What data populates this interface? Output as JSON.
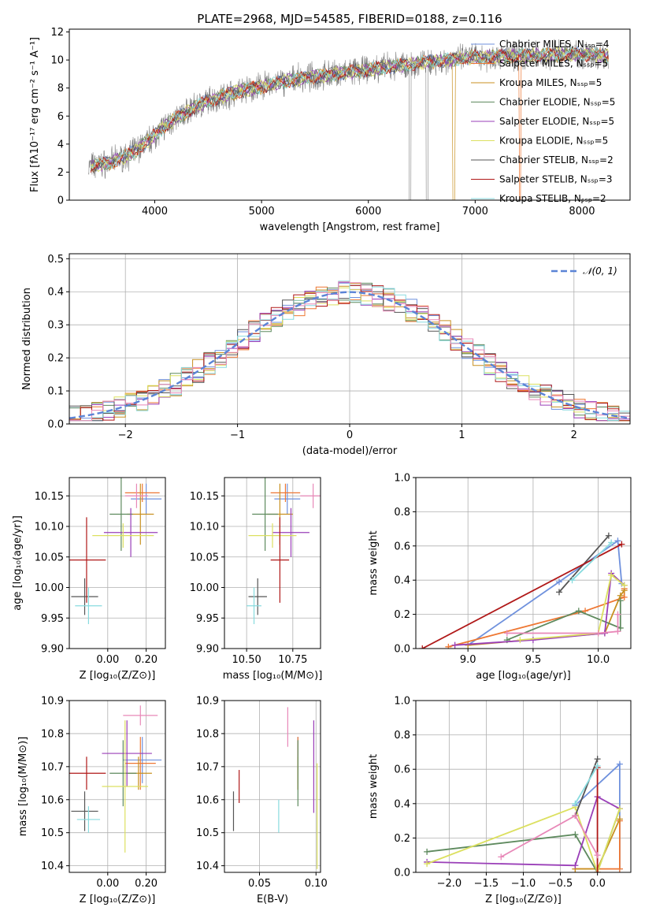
{
  "colors": {
    "series": [
      "#6f91dd",
      "#ee7733",
      "#c89020",
      "#5e8a5e",
      "#9a3fb8",
      "#dce060",
      "#555555",
      "#b01818",
      "#88dbdf"
    ],
    "hist": [
      "#6f91dd",
      "#ee7733",
      "#c89020",
      "#5e8a5e",
      "#9a3fb8",
      "#dce060",
      "#555555",
      "#b01818",
      "#88dbdf",
      "#e888b8"
    ],
    "spectrum": "#808080",
    "grid": "#b0b0b0",
    "gauss": "#5b84d6"
  },
  "chart_data": [
    {
      "id": "spectrum",
      "type": "line",
      "title": "PLATE=2968, MJD=54585, FIBERID=0188, z=0.116",
      "xlabel": "wavelength [Angstrom, rest frame]",
      "ylabel": "Flux [fλ10⁻¹⁷ erg cm⁻² s⁻¹ A⁻¹]",
      "xlim": [
        3200,
        8450
      ],
      "ylim": [
        0,
        12.2
      ],
      "xticks": [
        4000,
        5000,
        6000,
        7000,
        8000
      ],
      "yticks": [
        0,
        2,
        4,
        6,
        8,
        10,
        12
      ],
      "grid": false,
      "legend_position": "top-right",
      "legend": [
        "Chabrier MILES, Nₛₛₚ=4",
        "Salpeter MILES, Nₛₛₚ=5",
        "Kroupa MILES, Nₛₛₚ=5",
        "Chabrier ELODIE, Nₛₛₚ=5",
        "Salpeter ELODIE, Nₛₛₚ=5",
        "Kroupa ELODIE, Nₛₛₚ=5",
        "Chabrier STELIB, Nₛₛₚ=2",
        "Salpeter STELIB, Nₛₛₚ=3",
        "Kroupa STELIB, Nₛₛₚ=2"
      ],
      "continuum": [
        [
          3400,
          2.4
        ],
        [
          3600,
          2.7
        ],
        [
          3800,
          3.4
        ],
        [
          3950,
          4.3
        ],
        [
          4100,
          5.3
        ],
        [
          4300,
          6.3
        ],
        [
          4500,
          7.1
        ],
        [
          4800,
          7.8
        ],
        [
          5000,
          8.1
        ],
        [
          5300,
          8.6
        ],
        [
          5600,
          8.9
        ],
        [
          6000,
          9.3
        ],
        [
          6300,
          9.6
        ],
        [
          6600,
          9.9
        ],
        [
          7000,
          10.2
        ],
        [
          7400,
          10.3
        ],
        [
          7800,
          10.4
        ],
        [
          8000,
          10.4
        ],
        [
          8250,
          10.3
        ]
      ]
    },
    {
      "id": "residuals",
      "type": "line",
      "xlabel": "(data-model)/error",
      "ylabel": "Normed distribution",
      "xlim": [
        -2.5,
        2.5
      ],
      "ylim": [
        0,
        0.515
      ],
      "xticks": [
        -2,
        -1,
        0,
        1,
        2
      ],
      "yticks": [
        0.0,
        0.1,
        0.2,
        0.3,
        0.4,
        0.5
      ],
      "grid": true,
      "legend_position": "top-right",
      "legend": [
        "𝒩(0, 1)"
      ],
      "bin_width": 0.1
    },
    {
      "id": "age-vs-Z",
      "type": "scatter",
      "xlabel": "Z [log₁₀(Z/Z⊙)]",
      "ylabel": "age  [log₁₀(age/yr)]",
      "xlim": [
        -0.2,
        0.3
      ],
      "ylim": [
        9.9,
        10.18
      ],
      "xticks": [
        0.0,
        0.2
      ],
      "yticks": [
        9.9,
        9.95,
        10.0,
        10.05,
        10.1,
        10.15
      ],
      "grid": true,
      "points": [
        {
          "x": 0.2,
          "y": 10.145,
          "xerr": 0.08,
          "yerr": 0.025
        },
        {
          "x": 0.18,
          "y": 10.155,
          "xerr": 0.09,
          "yerr": 0.015
        },
        {
          "x": 0.17,
          "y": 10.12,
          "xerr": 0.07,
          "yerr": 0.05
        },
        {
          "x": 0.07,
          "y": 10.12,
          "xerr": 0.06,
          "yerr": 0.06
        },
        {
          "x": 0.12,
          "y": 10.09,
          "xerr": 0.14,
          "yerr": 0.04
        },
        {
          "x": 0.08,
          "y": 10.085,
          "xerr": 0.16,
          "yerr": 0.02
        },
        {
          "x": -0.12,
          "y": 9.985,
          "xerr": 0.07,
          "yerr": 0.03
        },
        {
          "x": -0.11,
          "y": 10.045,
          "xerr": 0.1,
          "yerr": 0.07
        },
        {
          "x": -0.1,
          "y": 9.97,
          "xerr": 0.07,
          "yerr": 0.03
        },
        {
          "x": 0.15,
          "y": 10.15,
          "xerr": 0.06,
          "yerr": 0.02
        }
      ]
    },
    {
      "id": "age-vs-mass",
      "type": "scatter",
      "xlabel": "mass [log₁₀(M/M⊙)]",
      "ylabel": "",
      "xlim": [
        10.38,
        10.9
      ],
      "ylim": [
        9.9,
        10.18
      ],
      "xticks": [
        10.5,
        10.75
      ],
      "yticks": [
        9.9,
        9.95,
        10.0,
        10.05,
        10.1,
        10.15
      ],
      "grid": true,
      "points": [
        {
          "x": 10.72,
          "y": 10.145,
          "xerr": 0.07,
          "yerr": 0.025
        },
        {
          "x": 10.71,
          "y": 10.155,
          "xerr": 0.08,
          "yerr": 0.015
        },
        {
          "x": 10.68,
          "y": 10.12,
          "xerr": 0.07,
          "yerr": 0.05
        },
        {
          "x": 10.6,
          "y": 10.12,
          "xerr": 0.07,
          "yerr": 0.06
        },
        {
          "x": 10.74,
          "y": 10.09,
          "xerr": 0.1,
          "yerr": 0.04
        },
        {
          "x": 10.64,
          "y": 10.085,
          "xerr": 0.13,
          "yerr": 0.02
        },
        {
          "x": 10.56,
          "y": 9.985,
          "xerr": 0.05,
          "yerr": 0.03
        },
        {
          "x": 10.68,
          "y": 10.045,
          "xerr": 0.05,
          "yerr": 0.07
        },
        {
          "x": 10.54,
          "y": 9.97,
          "xerr": 0.04,
          "yerr": 0.03
        },
        {
          "x": 10.86,
          "y": 10.15,
          "xerr": 0.07,
          "yerr": 0.02
        }
      ]
    },
    {
      "id": "weight-vs-age",
      "type": "line",
      "xlabel": "age  [log₁₀(age/yr)]",
      "ylabel": "mass weight",
      "xlim": [
        8.6,
        10.25
      ],
      "ylim": [
        0,
        1.0
      ],
      "xticks": [
        9.0,
        9.5,
        10.0
      ],
      "yticks": [
        0.0,
        0.2,
        0.4,
        0.6,
        0.8,
        1.0
      ],
      "grid": true,
      "series": [
        {
          "points": [
            [
              9.0,
              0.02
            ],
            [
              9.7,
              0.39
            ],
            [
              10.15,
              0.63
            ],
            [
              10.18,
              0.38
            ]
          ]
        },
        {
          "points": [
            [
              8.85,
              0.01
            ],
            [
              9.9,
              0.22
            ],
            [
              10.2,
              0.3
            ],
            [
              10.2,
              0.35
            ]
          ]
        },
        {
          "points": [
            [
              9.0,
              0.02
            ],
            [
              10.05,
              0.09
            ],
            [
              10.17,
              0.31
            ],
            [
              10.2,
              0.34
            ]
          ]
        },
        {
          "points": [
            [
              9.3,
              0.05
            ],
            [
              9.85,
              0.22
            ],
            [
              10.17,
              0.12
            ],
            [
              10.17,
              0.28
            ]
          ]
        },
        {
          "points": [
            [
              8.9,
              0.02
            ],
            [
              9.5,
              0.05
            ],
            [
              10.05,
              0.09
            ],
            [
              10.1,
              0.44
            ],
            [
              10.2,
              0.37
            ]
          ]
        },
        {
          "points": [
            [
              9.4,
              0.05
            ],
            [
              10.0,
              0.09
            ],
            [
              10.1,
              0.43
            ],
            [
              10.2,
              0.37
            ]
          ]
        },
        {
          "points": [
            [
              9.7,
              0.33
            ],
            [
              10.08,
              0.66
            ]
          ]
        },
        {
          "points": [
            [
              8.65,
              0.0
            ],
            [
              10.18,
              0.61
            ]
          ]
        },
        {
          "points": [
            [
              9.8,
              0.4
            ],
            [
              10.1,
              0.62
            ]
          ]
        },
        {
          "points": [
            [
              9.3,
              0.09
            ],
            [
              10.0,
              0.09
            ],
            [
              10.15,
              0.1
            ],
            [
              10.15,
              0.2
            ]
          ]
        }
      ]
    },
    {
      "id": "mass-vs-Z",
      "type": "scatter",
      "xlabel": "Z [log₁₀(Z/Z⊙)]",
      "ylabel": "mass [log₁₀(M/M⊙)]",
      "xlim": [
        -0.2,
        0.3
      ],
      "ylim": [
        10.38,
        10.9
      ],
      "xticks": [
        0.0,
        0.2
      ],
      "yticks": [
        10.4,
        10.5,
        10.6,
        10.7,
        10.8,
        10.9
      ],
      "grid": true,
      "points": [
        {
          "x": 0.18,
          "y": 10.72,
          "xerr": 0.1,
          "yerr": 0.07
        },
        {
          "x": 0.17,
          "y": 10.71,
          "xerr": 0.08,
          "yerr": 0.08
        },
        {
          "x": 0.16,
          "y": 10.68,
          "xerr": 0.07,
          "yerr": 0.05
        },
        {
          "x": 0.08,
          "y": 10.68,
          "xerr": 0.07,
          "yerr": 0.1
        },
        {
          "x": 0.1,
          "y": 10.74,
          "xerr": 0.13,
          "yerr": 0.1
        },
        {
          "x": 0.09,
          "y": 10.64,
          "xerr": 0.12,
          "yerr": 0.2
        },
        {
          "x": -0.12,
          "y": 10.565,
          "xerr": 0.07,
          "yerr": 0.06
        },
        {
          "x": -0.11,
          "y": 10.68,
          "xerr": 0.1,
          "yerr": 0.05
        },
        {
          "x": -0.1,
          "y": 10.54,
          "xerr": 0.06,
          "yerr": 0.04
        },
        {
          "x": 0.17,
          "y": 10.855,
          "xerr": 0.09,
          "yerr": 0.03
        }
      ]
    },
    {
      "id": "mass-vs-ebv",
      "type": "scatter",
      "xlabel": "E(B-V)",
      "ylabel": "",
      "xlim": [
        0.019,
        0.104
      ],
      "ylim": [
        10.38,
        10.9
      ],
      "xticks": [
        0.05,
        0.1
      ],
      "yticks": [
        10.4,
        10.5,
        10.6,
        10.7,
        10.8,
        10.9
      ],
      "grid": true,
      "points": [
        {
          "x": 0.084,
          "y": 10.72,
          "xerr": 0,
          "yerr": 0.07
        },
        {
          "x": 0.084,
          "y": 10.71,
          "xerr": 0,
          "yerr": 0.08
        },
        {
          "x": 0.084,
          "y": 10.68,
          "xerr": 0,
          "yerr": 0.05
        },
        {
          "x": 0.084,
          "y": 10.68,
          "xerr": 0,
          "yerr": 0.1
        },
        {
          "x": 0.098,
          "y": 10.7,
          "xerr": 0,
          "yerr": 0.14
        },
        {
          "x": 0.101,
          "y": 10.55,
          "xerr": 0,
          "yerr": 0.16
        },
        {
          "x": 0.027,
          "y": 10.565,
          "xerr": 0,
          "yerr": 0.06
        },
        {
          "x": 0.032,
          "y": 10.64,
          "xerr": 0,
          "yerr": 0.05
        },
        {
          "x": 0.067,
          "y": 10.55,
          "xerr": 0,
          "yerr": 0.05
        },
        {
          "x": 0.075,
          "y": 10.82,
          "xerr": 0,
          "yerr": 0.06
        }
      ]
    },
    {
      "id": "weight-vs-Z",
      "type": "line",
      "xlabel": "Z [log₁₀(Z/Z⊙)]",
      "ylabel": "mass weight",
      "xlim": [
        -2.45,
        0.45
      ],
      "ylim": [
        0,
        1.0
      ],
      "xticks": [
        -2.0,
        -1.5,
        -1.0,
        -0.5,
        0.0
      ],
      "yticks": [
        0.0,
        0.2,
        0.4,
        0.6,
        0.8,
        1.0
      ],
      "grid": true,
      "series": [
        {
          "points": [
            [
              -0.3,
              0.39
            ],
            [
              0.3,
              0.63
            ],
            [
              0.3,
              0.02
            ]
          ]
        },
        {
          "points": [
            [
              -0.3,
              0.02
            ],
            [
              0.3,
              0.02
            ],
            [
              0.3,
              0.3
            ]
          ]
        },
        {
          "points": [
            [
              -0.3,
              0.02
            ],
            [
              0.0,
              0.02
            ],
            [
              0.3,
              0.31
            ]
          ]
        },
        {
          "points": [
            [
              -2.3,
              0.12
            ],
            [
              -0.3,
              0.22
            ],
            [
              0.0,
              0.0
            ],
            [
              0.3,
              0.37
            ]
          ]
        },
        {
          "points": [
            [
              -2.3,
              0.06
            ],
            [
              -0.3,
              0.04
            ],
            [
              0.0,
              0.44
            ],
            [
              0.3,
              0.37
            ]
          ]
        },
        {
          "points": [
            [
              -2.3,
              0.05
            ],
            [
              -0.3,
              0.38
            ],
            [
              0.0,
              0.0
            ],
            [
              0.3,
              0.37
            ]
          ]
        },
        {
          "points": [
            [
              -0.3,
              0.33
            ],
            [
              0.0,
              0.66
            ]
          ]
        },
        {
          "points": [
            [
              0.0,
              0.0
            ],
            [
              0.0,
              0.61
            ]
          ]
        },
        {
          "points": [
            [
              -0.3,
              0.4
            ],
            [
              0.0,
              0.62
            ]
          ]
        },
        {
          "points": [
            [
              -1.3,
              0.09
            ],
            [
              -0.3,
              0.33
            ],
            [
              0.0,
              0.1
            ]
          ]
        }
      ]
    }
  ]
}
